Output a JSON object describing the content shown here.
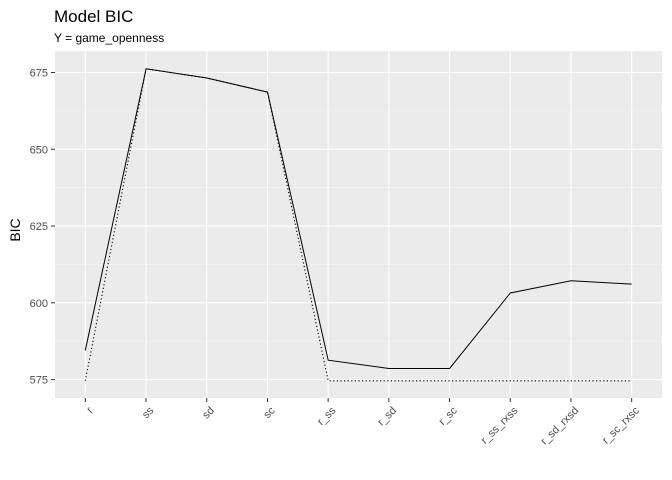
{
  "chart_data": {
    "type": "line",
    "title": "Model BIC",
    "subtitle": "Y = game_openness",
    "xlabel": "",
    "ylabel": "BIC",
    "categories": [
      "r",
      "ss",
      "sd",
      "sc",
      "r_ss",
      "r_sd",
      "r_sc",
      "r_ss_rxss",
      "r_sd_rxsd",
      "r_sc_rxsc"
    ],
    "ylim": [
      569,
      682
    ],
    "yticks": [
      575,
      600,
      625,
      650,
      675
    ],
    "grid": true,
    "legend": "none",
    "series": [
      {
        "style": "solid",
        "values": [
          584.5,
          676.2,
          673.2,
          668.6,
          581.3,
          578.6,
          578.6,
          603.2,
          607.2,
          606.1
        ]
      },
      {
        "style": "dotted",
        "values": [
          574.6,
          676.2,
          673.2,
          668.6,
          574.6,
          574.6,
          574.6,
          574.6,
          574.6,
          574.6
        ]
      }
    ],
    "colors": {
      "panel": "#ebebeb",
      "grid_major": "#ffffff",
      "grid_minor": "#f5f5f5",
      "line": "#000000"
    }
  }
}
